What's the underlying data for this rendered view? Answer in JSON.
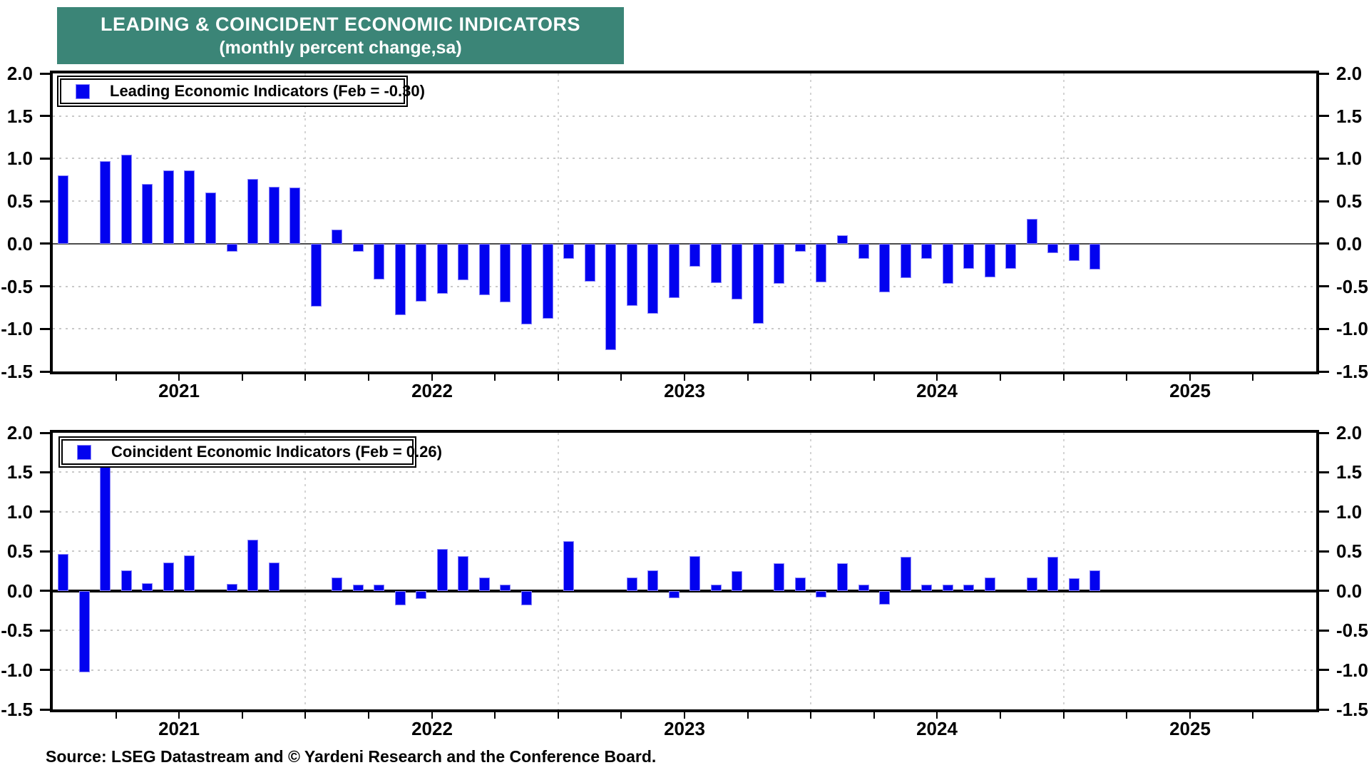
{
  "title": {
    "line1": "LEADING & COINCIDENT ECONOMIC INDICATORS",
    "line2": "(monthly percent change,sa)",
    "bg_color": "#3B8577",
    "text_color": "#FFFFFF"
  },
  "source_note": "Source: LSEG Datastream and © Yardeni Research and the Conference Board.",
  "colors": {
    "bar_fill": "#0202EF",
    "bar_edge": "#8C86F8",
    "grid_dot": "#C9C9C9",
    "axis": "#000000",
    "zero_line_panel1": "#4D4D4D",
    "zero_line_panel2": "#000000"
  },
  "axis": {
    "y_tick_labels": [
      "2.0",
      "1.5",
      "1.0",
      "0.5",
      "0.0",
      "-0.5",
      "-1.0",
      "-1.5"
    ],
    "y_tick_values": [
      2.0,
      1.5,
      1.0,
      0.5,
      0.0,
      -0.5,
      -1.0,
      -1.5
    ],
    "y_max": 2.0,
    "y_min": -1.5,
    "year_labels": [
      "2021",
      "2022",
      "2023",
      "2024",
      "2025"
    ],
    "x_axis_span": "Jan 2021 - Dec 2025",
    "grid_style": "dotted",
    "tick_interval_months": 3
  },
  "chart_data": [
    {
      "type": "bar",
      "name": "leading-economic-indicators",
      "legend": "Leading Economic Indicators (Feb = -0.30)",
      "x_frequency": "monthly",
      "x_start": "2021-01",
      "x_last_bar": "2025-02",
      "ylim": [
        -1.5,
        2.0
      ],
      "values": [
        0.8,
        0.0,
        0.97,
        1.05,
        0.7,
        0.86,
        0.86,
        0.6,
        -0.09,
        0.76,
        0.67,
        0.66,
        -0.74,
        0.17,
        -0.09,
        -0.42,
        -0.84,
        -0.68,
        -0.59,
        -0.43,
        -0.6,
        -0.69,
        -0.95,
        -0.88,
        -0.18,
        -0.44,
        -1.25,
        -0.73,
        -0.82,
        -0.64,
        -0.27,
        -0.46,
        -0.65,
        -0.94,
        -0.47,
        -0.09,
        -0.45,
        0.1,
        -0.18,
        -0.57,
        -0.4,
        -0.18,
        -0.47,
        -0.29,
        -0.39,
        -0.29,
        0.29,
        -0.11,
        -0.2,
        -0.3
      ]
    },
    {
      "type": "bar",
      "name": "coincident-economic-indicators",
      "legend": "Coincident Economic Indicators (Feb = 0.26)",
      "x_frequency": "monthly",
      "x_start": "2021-01",
      "x_last_bar": "2025-02",
      "ylim": [
        -1.5,
        2.0
      ],
      "values": [
        0.47,
        -1.03,
        1.57,
        0.26,
        0.1,
        0.36,
        0.45,
        0.0,
        0.09,
        0.65,
        0.36,
        0.0,
        0.0,
        0.17,
        0.08,
        0.08,
        -0.18,
        -0.1,
        0.53,
        0.44,
        0.17,
        0.08,
        -0.18,
        0.0,
        0.63,
        0.0,
        0.0,
        0.17,
        0.26,
        -0.09,
        0.44,
        0.08,
        0.25,
        0.0,
        0.35,
        0.17,
        -0.08,
        0.35,
        0.08,
        -0.17,
        0.43,
        0.08,
        0.08,
        0.08,
        0.17,
        0.0,
        0.17,
        0.43,
        0.16,
        0.26
      ]
    }
  ]
}
